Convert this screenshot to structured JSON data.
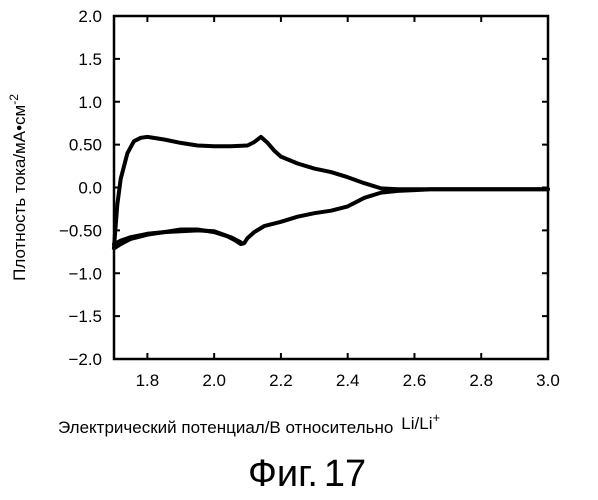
{
  "chart_data": {
    "type": "line",
    "title": "",
    "xlabel": "Электрический потенциал/В относительно",
    "xlabel_suffix": "Li/Li",
    "xlabel_superscript": "+",
    "ylabel": "Плотность тока/мА•см",
    "ylabel_superscript": "-2",
    "xlim": [
      1.7,
      3.0
    ],
    "ylim": [
      -2.0,
      2.0
    ],
    "x_ticks": [
      1.8,
      2.0,
      2.2,
      2.4,
      2.6,
      2.8,
      3.0
    ],
    "x_tick_labels": [
      "1.8",
      "2.0",
      "2.2",
      "2.4",
      "2.6",
      "2.8",
      "3.0"
    ],
    "y_ticks": [
      2.0,
      1.5,
      1.0,
      0.5,
      0.0,
      -0.5,
      -1.0,
      -1.5,
      -2.0
    ],
    "y_tick_labels": [
      "2.0",
      "1.5",
      "1.0",
      "0.50",
      "0.0",
      "−0.50",
      "−1.0",
      "−1.5",
      "−2.0"
    ],
    "grid": false,
    "line_color": "#000000",
    "series": [
      {
        "x": [
          1.7,
          1.71,
          1.72,
          1.74,
          1.76,
          1.78,
          1.8,
          1.85,
          1.9,
          1.95,
          2.0,
          2.05,
          2.1,
          2.12,
          2.14,
          2.16,
          2.18,
          2.2,
          2.25,
          2.3,
          2.35,
          2.4,
          2.45,
          2.5,
          2.55,
          2.6,
          2.65,
          2.7,
          3.0
        ],
        "y": [
          -0.7,
          -0.2,
          0.1,
          0.4,
          0.54,
          0.58,
          0.59,
          0.56,
          0.52,
          0.49,
          0.48,
          0.48,
          0.49,
          0.53,
          0.59,
          0.52,
          0.43,
          0.36,
          0.28,
          0.22,
          0.18,
          0.12,
          0.05,
          -0.01,
          -0.02,
          -0.02,
          -0.02,
          -0.02,
          -0.02
        ]
      },
      {
        "x": [
          3.0,
          2.7,
          2.65,
          2.6,
          2.55,
          2.5,
          2.45,
          2.4,
          2.35,
          2.3,
          2.25,
          2.2,
          2.15,
          2.12,
          2.1,
          2.09,
          2.08,
          2.06,
          2.04,
          2.0,
          1.95,
          1.9,
          1.85,
          1.8,
          1.75,
          1.72,
          1.7
        ],
        "y": [
          -0.02,
          -0.02,
          -0.02,
          -0.03,
          -0.04,
          -0.06,
          -0.12,
          -0.22,
          -0.27,
          -0.3,
          -0.34,
          -0.4,
          -0.45,
          -0.52,
          -0.59,
          -0.65,
          -0.66,
          -0.61,
          -0.57,
          -0.52,
          -0.49,
          -0.49,
          -0.52,
          -0.55,
          -0.6,
          -0.66,
          -0.71
        ]
      },
      {
        "x": [
          1.7,
          1.72,
          1.75,
          1.8,
          1.85,
          1.9,
          1.95,
          2.0,
          2.05,
          2.08
        ],
        "y": [
          -0.66,
          -0.62,
          -0.58,
          -0.54,
          -0.52,
          -0.51,
          -0.5,
          -0.51,
          -0.58,
          -0.64
        ]
      }
    ]
  },
  "caption": {
    "text": "Фиг.",
    "number": "17"
  }
}
